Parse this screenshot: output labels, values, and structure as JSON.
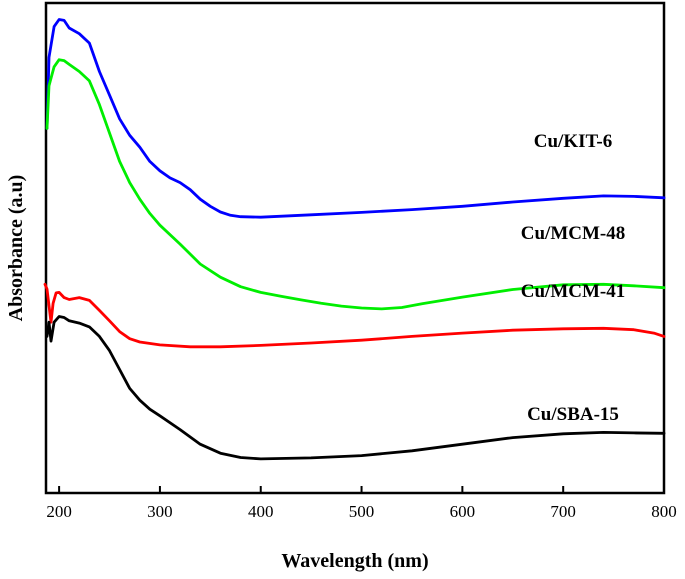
{
  "chart_data": {
    "type": "line",
    "title": "",
    "xlabel": "Wavelength (nm)",
    "ylabel": "Absorbance (a.u)",
    "xlim": [
      187,
      800
    ],
    "ylim": [
      0,
      100
    ],
    "x_ticks": [
      200,
      300,
      400,
      500,
      600,
      700,
      800
    ],
    "x_tick_labels": [
      "200",
      "300",
      "400",
      "500",
      "600",
      "700",
      "800"
    ],
    "y_ticks_shown": false,
    "grid": false,
    "legend": "inline-labels",
    "series": [
      {
        "name": "Cu/KIT-6",
        "label_text": "Cu/KIT-6",
        "color": "#0000ff",
        "points": [
          [
            188,
            75
          ],
          [
            190,
            90
          ],
          [
            195,
            96.5
          ],
          [
            200,
            98
          ],
          [
            205,
            97.8
          ],
          [
            210,
            96.2
          ],
          [
            220,
            95
          ],
          [
            230,
            93
          ],
          [
            240,
            87
          ],
          [
            250,
            82
          ],
          [
            260,
            77
          ],
          [
            270,
            73.5
          ],
          [
            280,
            71
          ],
          [
            290,
            68
          ],
          [
            300,
            66
          ],
          [
            310,
            64.5
          ],
          [
            320,
            63.5
          ],
          [
            330,
            62
          ],
          [
            340,
            60
          ],
          [
            350,
            58.5
          ],
          [
            360,
            57.3
          ],
          [
            370,
            56.6
          ],
          [
            380,
            56.3
          ],
          [
            400,
            56.2
          ],
          [
            450,
            56.7
          ],
          [
            500,
            57.2
          ],
          [
            550,
            57.8
          ],
          [
            600,
            58.5
          ],
          [
            650,
            59.4
          ],
          [
            700,
            60.2
          ],
          [
            740,
            60.7
          ],
          [
            770,
            60.6
          ],
          [
            800,
            60.3
          ]
        ]
      },
      {
        "name": "Cu/MCM-48",
        "label_text": "Cu/MCM-48",
        "color": "#00ee00",
        "points": [
          [
            188,
            75
          ],
          [
            190,
            84
          ],
          [
            195,
            88
          ],
          [
            200,
            89.5
          ],
          [
            205,
            89.3
          ],
          [
            210,
            88.5
          ],
          [
            220,
            87
          ],
          [
            230,
            85
          ],
          [
            240,
            80
          ],
          [
            250,
            74
          ],
          [
            260,
            68
          ],
          [
            270,
            63.5
          ],
          [
            280,
            60
          ],
          [
            290,
            57
          ],
          [
            300,
            54.5
          ],
          [
            320,
            50.5
          ],
          [
            340,
            46.3
          ],
          [
            360,
            43.5
          ],
          [
            380,
            41.5
          ],
          [
            400,
            40.3
          ],
          [
            420,
            39.5
          ],
          [
            440,
            38.7
          ],
          [
            460,
            38
          ],
          [
            480,
            37.4
          ],
          [
            500,
            37
          ],
          [
            520,
            36.8
          ],
          [
            540,
            37.1
          ],
          [
            560,
            37.9
          ],
          [
            600,
            39.3
          ],
          [
            650,
            40.9
          ],
          [
            700,
            41.9
          ],
          [
            740,
            42
          ],
          [
            770,
            41.7
          ],
          [
            800,
            41.3
          ]
        ]
      },
      {
        "name": "Cu/MCM-41",
        "label_text": "Cu/MCM-41",
        "color": "#ff0000",
        "points": [
          [
            186,
            42
          ],
          [
            188,
            41
          ],
          [
            190,
            37.5
          ],
          [
            192,
            34
          ],
          [
            194,
            38
          ],
          [
            197,
            40.2
          ],
          [
            200,
            40.3
          ],
          [
            205,
            39.2
          ],
          [
            210,
            38.8
          ],
          [
            220,
            39.2
          ],
          [
            230,
            38.6
          ],
          [
            240,
            36.5
          ],
          [
            250,
            34.3
          ],
          [
            260,
            32
          ],
          [
            270,
            30.5
          ],
          [
            280,
            29.8
          ],
          [
            300,
            29.2
          ],
          [
            330,
            28.8
          ],
          [
            360,
            28.8
          ],
          [
            400,
            29.1
          ],
          [
            450,
            29.6
          ],
          [
            500,
            30.2
          ],
          [
            550,
            31
          ],
          [
            600,
            31.7
          ],
          [
            650,
            32.3
          ],
          [
            700,
            32.6
          ],
          [
            740,
            32.7
          ],
          [
            770,
            32.4
          ],
          [
            790,
            31.7
          ],
          [
            800,
            31
          ]
        ]
      },
      {
        "name": "Cu/SBA-15",
        "label_text": "Cu/SBA-15",
        "color": "#000000",
        "points": [
          [
            188,
            31
          ],
          [
            190,
            34
          ],
          [
            192,
            30
          ],
          [
            195,
            34
          ],
          [
            200,
            35.2
          ],
          [
            205,
            35
          ],
          [
            210,
            34.3
          ],
          [
            220,
            33.8
          ],
          [
            230,
            33
          ],
          [
            240,
            31
          ],
          [
            250,
            28
          ],
          [
            260,
            24
          ],
          [
            270,
            20
          ],
          [
            280,
            17.5
          ],
          [
            290,
            15.6
          ],
          [
            300,
            14.2
          ],
          [
            320,
            11.3
          ],
          [
            340,
            8.2
          ],
          [
            360,
            6.3
          ],
          [
            380,
            5.4
          ],
          [
            400,
            5.1
          ],
          [
            450,
            5.3
          ],
          [
            500,
            5.8
          ],
          [
            550,
            6.8
          ],
          [
            600,
            8.2
          ],
          [
            650,
            9.6
          ],
          [
            700,
            10.4
          ],
          [
            740,
            10.7
          ],
          [
            770,
            10.6
          ],
          [
            800,
            10.5
          ]
        ]
      }
    ]
  }
}
